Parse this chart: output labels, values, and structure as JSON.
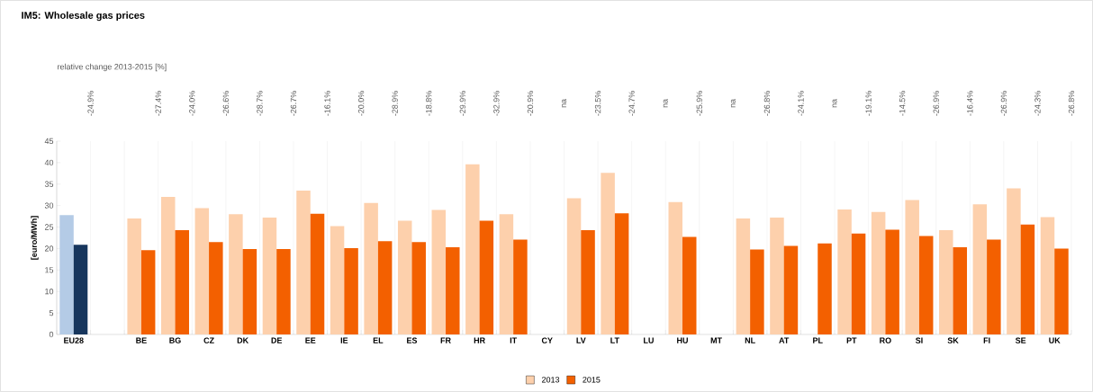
{
  "chart_data": {
    "type": "bar",
    "title": "IM5: Wholesale gas prices",
    "ylabel": "[euro/MWh]",
    "categories": [
      "EU28",
      null,
      "BE",
      "BG",
      "CZ",
      "DK",
      "DE",
      "EE",
      "IE",
      "EL",
      "ES",
      "FR",
      "HR",
      "IT",
      "CY",
      "LV",
      "LT",
      "LU",
      "HU",
      "MT",
      "NL",
      "AT",
      "PL",
      "PT",
      "RO",
      "SI",
      "SK",
      "FI",
      "SE",
      "UK"
    ],
    "series": [
      {
        "name": "2013",
        "color": "#fdd0ac",
        "colors": [
          "#b4cbe6",
          null,
          "#fdd0ac",
          "#fdd0ac",
          "#fdd0ac",
          "#fdd0ac",
          "#fdd0ac",
          "#fdd0ac",
          "#fdd0ac",
          "#fdd0ac",
          "#fdd0ac",
          "#fdd0ac",
          "#fdd0ac",
          "#fdd0ac",
          "#fdd0ac",
          "#fdd0ac",
          "#fdd0ac",
          "#fdd0ac",
          "#fdd0ac",
          "#fdd0ac",
          "#fdd0ac",
          "#fdd0ac",
          "#fdd0ac",
          "#fdd0ac",
          "#fdd0ac",
          "#fdd0ac",
          "#fdd0ac",
          "#fdd0ac",
          "#fdd0ac",
          "#fdd0ac"
        ],
        "values": [
          27.8,
          null,
          27.0,
          32.0,
          29.4,
          28.0,
          27.2,
          33.5,
          25.2,
          30.6,
          26.5,
          29.0,
          39.6,
          28.0,
          null,
          31.7,
          37.6,
          null,
          30.8,
          null,
          27.0,
          27.2,
          null,
          29.1,
          28.5,
          31.3,
          24.3,
          30.3,
          34.0,
          27.3
        ]
      },
      {
        "name": "2015",
        "color": "#f36000",
        "colors": [
          "#17365d",
          null,
          "#f36000",
          "#f36000",
          "#f36000",
          "#f36000",
          "#f36000",
          "#f36000",
          "#f36000",
          "#f36000",
          "#f36000",
          "#f36000",
          "#f36000",
          "#f36000",
          "#f36000",
          "#f36000",
          "#f36000",
          "#f36000",
          "#f36000",
          "#f36000",
          "#f36000",
          "#f36000",
          "#f36000",
          "#f36000",
          "#f36000",
          "#f36000",
          "#f36000",
          "#f36000",
          "#f36000",
          "#f36000"
        ],
        "values": [
          20.9,
          null,
          19.6,
          24.3,
          21.5,
          19.9,
          19.9,
          28.1,
          20.1,
          21.7,
          21.5,
          20.3,
          26.5,
          22.1,
          null,
          24.3,
          28.2,
          null,
          22.7,
          null,
          19.8,
          20.6,
          21.2,
          23.5,
          24.4,
          22.9,
          20.3,
          22.1,
          25.6,
          20.0
        ]
      }
    ],
    "ylim": [
      0,
      45
    ],
    "yticks": [
      0,
      5,
      10,
      15,
      20,
      25,
      30,
      35,
      40,
      45
    ],
    "grid": "x",
    "legend": "bottom",
    "annotations": [
      "relative change 2013-2015 [%]",
      "-24.9%",
      "-27.4%",
      "-24.0%",
      "-26.6%",
      "-28.7%",
      "-26.7%",
      "-16.1%",
      "-20.0%",
      "-28.9%",
      "-18.8%",
      "-29.9%",
      "-32.9%",
      "-20.9%",
      "na",
      "-23.5%",
      "-24.7%",
      "na",
      "-25.9%",
      "na",
      "-26.8%",
      "-24.1%",
      "na",
      "-19.1%",
      "-14.5%",
      "-26.9%",
      "-16.4%",
      "-26.9%",
      "-24.3%",
      "-26.8%"
    ]
  }
}
